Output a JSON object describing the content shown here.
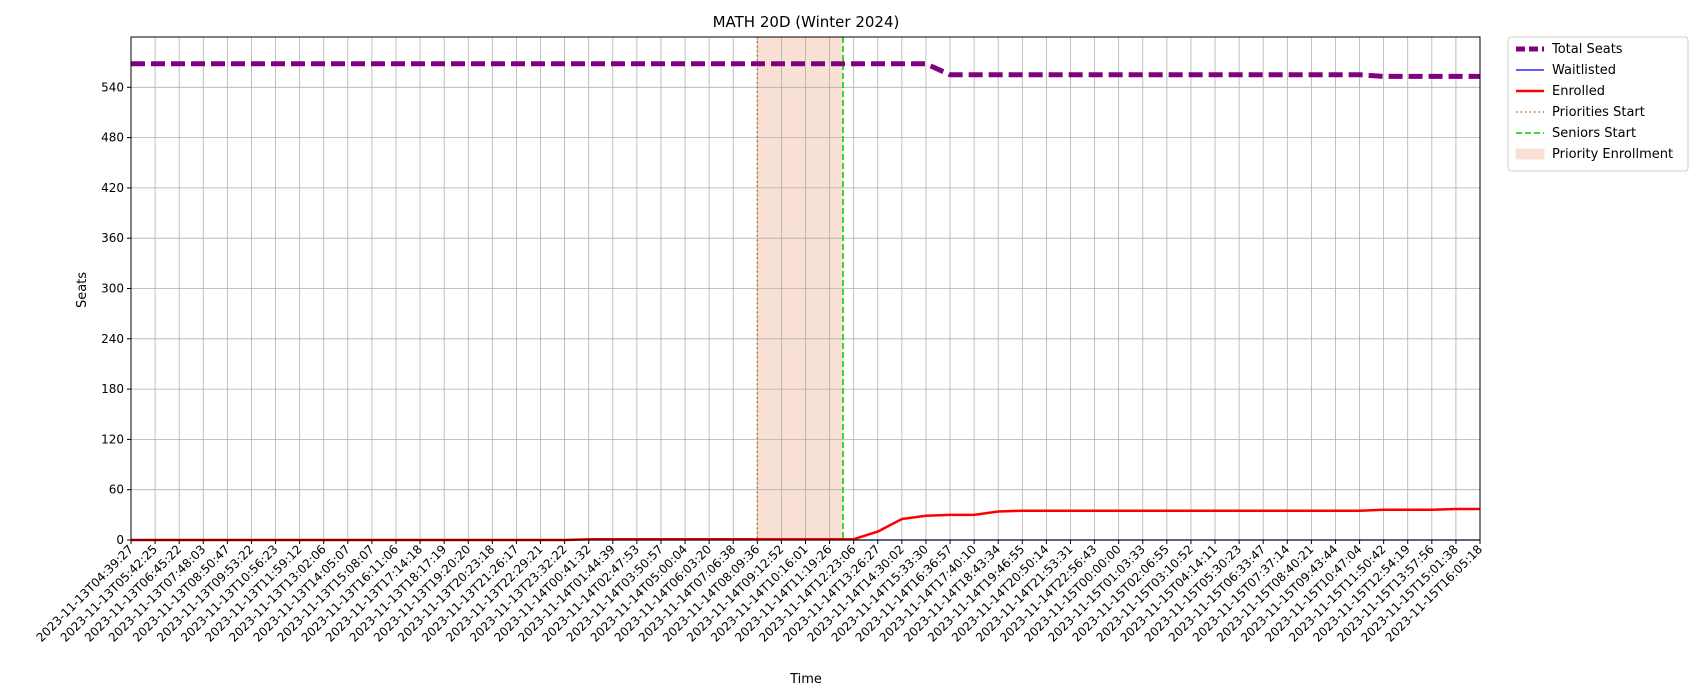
{
  "chart_data": {
    "type": "line",
    "title": "MATH 20D (Winter 2024)",
    "xlabel": "Time",
    "ylabel": "Seats",
    "ylim": [
      0,
      600
    ],
    "yticks": [
      0,
      60,
      120,
      180,
      240,
      300,
      360,
      420,
      480,
      540
    ],
    "grid": true,
    "legend_position": "outside-top-right",
    "x": [
      "2023-11-13T04:39:27",
      "2023-11-13T05:42:25",
      "2023-11-13T06:45:22",
      "2023-11-13T07:48:03",
      "2023-11-13T08:50:47",
      "2023-11-13T09:53:22",
      "2023-11-13T10:56:23",
      "2023-11-13T11:59:12",
      "2023-11-13T13:02:06",
      "2023-11-13T14:05:07",
      "2023-11-13T15:08:07",
      "2023-11-13T16:11:06",
      "2023-11-13T17:14:18",
      "2023-11-13T18:17:19",
      "2023-11-13T19:20:20",
      "2023-11-13T20:23:18",
      "2023-11-13T21:26:17",
      "2023-11-13T22:29:21",
      "2023-11-13T23:32:22",
      "2023-11-14T00:41:32",
      "2023-11-14T01:44:39",
      "2023-11-14T02:47:53",
      "2023-11-14T03:50:57",
      "2023-11-14T05:00:04",
      "2023-11-14T06:03:20",
      "2023-11-14T07:06:38",
      "2023-11-14T08:09:36",
      "2023-11-14T09:12:52",
      "2023-11-14T10:16:01",
      "2023-11-14T11:19:26",
      "2023-11-14T12:23:06",
      "2023-11-14T13:26:27",
      "2023-11-14T14:30:02",
      "2023-11-14T15:33:30",
      "2023-11-14T16:36:57",
      "2023-11-14T17:40:10",
      "2023-11-14T18:43:34",
      "2023-11-14T19:46:55",
      "2023-11-14T20:50:14",
      "2023-11-14T21:53:31",
      "2023-11-14T22:56:43",
      "2023-11-15T00:00:00",
      "2023-11-15T01:03:33",
      "2023-11-15T02:06:55",
      "2023-11-15T03:10:52",
      "2023-11-15T04:14:11",
      "2023-11-15T05:30:23",
      "2023-11-15T06:33:47",
      "2023-11-15T07:37:14",
      "2023-11-15T08:40:21",
      "2023-11-15T09:43:44",
      "2023-11-15T10:47:04",
      "2023-11-15T11:50:42",
      "2023-11-15T12:54:19",
      "2023-11-15T13:57:56",
      "2023-11-15T15:01:38",
      "2023-11-15T16:05:18"
    ],
    "series": [
      {
        "name": "Total Seats",
        "color": "#800080",
        "style": "dashed-thick",
        "values": [
          568,
          568,
          568,
          568,
          568,
          568,
          568,
          568,
          568,
          568,
          568,
          568,
          568,
          568,
          568,
          568,
          568,
          568,
          568,
          568,
          568,
          568,
          568,
          568,
          568,
          568,
          568,
          568,
          568,
          568,
          568,
          568,
          568,
          568,
          555,
          555,
          555,
          555,
          555,
          555,
          555,
          555,
          555,
          555,
          555,
          555,
          555,
          555,
          555,
          555,
          555,
          555,
          553,
          553,
          553,
          553,
          553
        ]
      },
      {
        "name": "Waitlisted",
        "color": "#0000ff",
        "style": "solid-thin",
        "values": [
          0,
          0,
          0,
          0,
          0,
          0,
          0,
          0,
          0,
          0,
          0,
          0,
          0,
          0,
          0,
          0,
          0,
          0,
          0,
          0,
          0,
          0,
          0,
          0,
          0,
          0,
          0,
          0,
          0,
          0,
          0,
          0,
          0,
          0,
          0,
          0,
          0,
          0,
          0,
          0,
          0,
          0,
          0,
          0,
          0,
          0,
          0,
          0,
          0,
          0,
          0,
          0,
          0,
          0,
          0,
          0,
          0
        ]
      },
      {
        "name": "Enrolled",
        "color": "#ff0000",
        "style": "solid",
        "values": [
          0,
          0,
          0,
          0,
          0,
          0,
          0,
          0,
          0,
          0,
          0,
          0,
          0,
          0,
          0,
          0,
          0,
          0,
          0,
          1,
          1,
          1,
          1,
          1,
          1,
          1,
          1,
          1,
          1,
          1,
          1,
          10,
          25,
          29,
          30,
          30,
          34,
          35,
          35,
          35,
          35,
          35,
          35,
          35,
          35,
          35,
          35,
          35,
          35,
          35,
          35,
          35,
          36,
          36,
          36,
          37,
          37
        ]
      }
    ],
    "markers": [
      {
        "name": "Priorities Start",
        "x": "2023-11-14T08:09:36",
        "color": "#d2691e",
        "style": "dotted"
      },
      {
        "name": "Seniors Start",
        "x": "2023-11-14T11:55:00",
        "color": "#00cc00",
        "style": "dashed"
      }
    ],
    "shaded_region": {
      "name": "Priority Enrollment",
      "from": "2023-11-14T08:09:36",
      "to": "2023-11-14T11:55:00",
      "color": "#f4c7b0"
    }
  }
}
